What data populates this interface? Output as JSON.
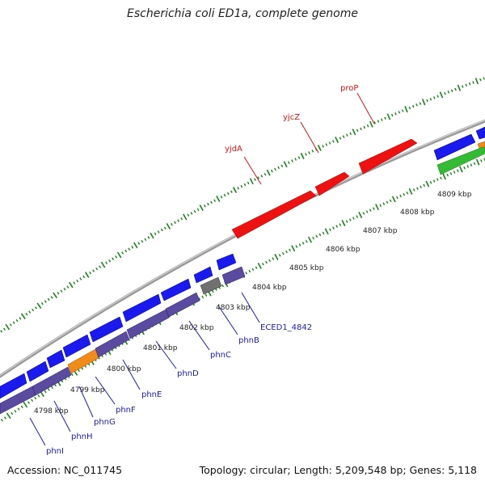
{
  "title": "Escherichia coli ED1a, complete genome",
  "accession": "Accession: NC_011745",
  "topology": "Topology: circular; Length: 5,209,548 bp; Genes: 5,118",
  "colors": {
    "forward_gene": "#ee1111",
    "reverse_gene": "#1a1aee",
    "operon_purple": "#5a4aa0",
    "orange_gene": "#f08a1a",
    "green_gene": "#33bb33",
    "gray_gene": "#707070",
    "backbone": "#999999",
    "tick_green": "#118811",
    "label_blue": "#1a1acc",
    "label_red": "#dd1111"
  },
  "kbp_labels": [
    "4798 kbp",
    "4799 kbp",
    "4800 kbp",
    "4801 kbp",
    "4802 kbp",
    "4803 kbp",
    "4804 kbp",
    "4805 kbp",
    "4806 kbp",
    "4807 kbp",
    "4808 kbp",
    "4809 kbp"
  ],
  "upper_labels": [
    "yjdA",
    "yjcZ",
    "proP"
  ],
  "lower_labels": [
    "phnI",
    "phnH",
    "phnG",
    "phnF",
    "phnE",
    "phnD",
    "phnC",
    "phnB",
    "ECED1_4842"
  ]
}
